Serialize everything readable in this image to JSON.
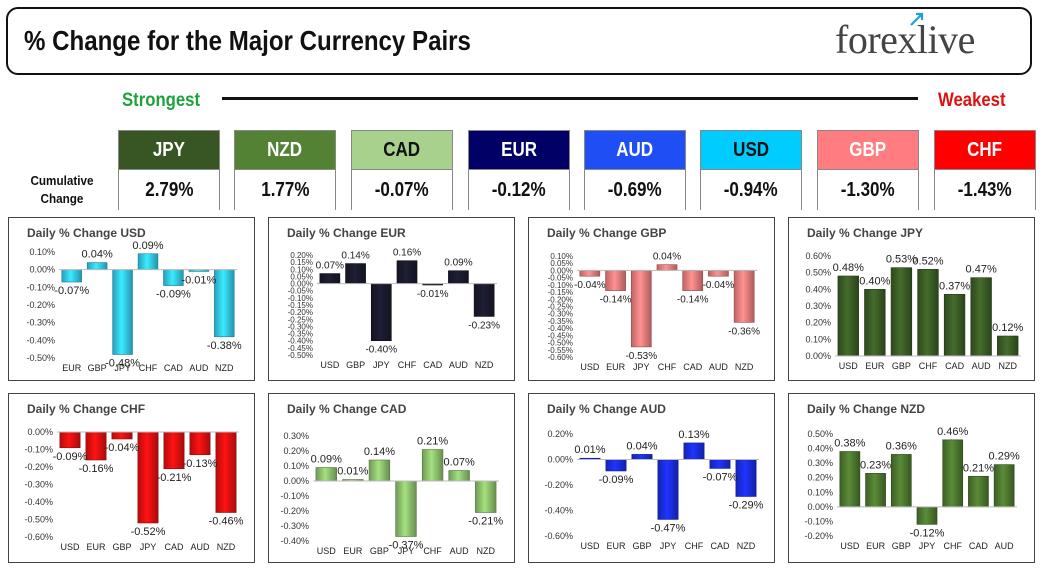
{
  "header": {
    "title": "% Change for the Major Currency Pairs",
    "logo_text_left": "fore",
    "logo_text_x": "x",
    "logo_text_right": "live",
    "strongest_label": "Strongest",
    "weakest_label": "Weakest",
    "cumulative_label_1": "Cumulative",
    "cumulative_label_2": "Change"
  },
  "ranking": [
    {
      "ccy": "JPY",
      "value": "2.79%",
      "bg": "#375623",
      "fg": "#ffffff"
    },
    {
      "ccy": "NZD",
      "value": "1.77%",
      "bg": "#548235",
      "fg": "#ffffff"
    },
    {
      "ccy": "CAD",
      "value": "-0.07%",
      "bg": "#a9d18e",
      "fg": "#111111"
    },
    {
      "ccy": "EUR",
      "value": "-0.12%",
      "bg": "#000066",
      "fg": "#ffffff"
    },
    {
      "ccy": "AUD",
      "value": "-0.69%",
      "bg": "#1f4ef5",
      "fg": "#ffffff"
    },
    {
      "ccy": "USD",
      "value": "-0.94%",
      "bg": "#00ccff",
      "fg": "#111111"
    },
    {
      "ccy": "GBP",
      "value": "-1.30%",
      "bg": "#ff7c80",
      "fg": "#ffffff"
    },
    {
      "ccy": "CHF",
      "value": "-1.43%",
      "bg": "#ff0000",
      "fg": "#ffffff"
    }
  ],
  "chart_data": [
    {
      "type": "bar",
      "title": "Daily % Change USD",
      "categories": [
        "EUR",
        "GBP",
        "JPY",
        "CHF",
        "CAD",
        "AUD",
        "NZD"
      ],
      "values": [
        -0.07,
        0.04,
        -0.48,
        0.09,
        -0.09,
        -0.01,
        -0.38
      ],
      "labels": [
        "-0.07%",
        "0.04%",
        "-0.48%",
        "0.09%",
        "-0.09%",
        "-0.01%",
        "-0.38%"
      ],
      "ticks": [
        0.1,
        0,
        -0.1,
        -0.2,
        -0.3,
        -0.4,
        -0.5
      ],
      "tick_labels": [
        "0.10%",
        "0.00%",
        "-0.10%",
        "-0.20%",
        "-0.30%",
        "-0.40%",
        "-0.50%"
      ],
      "color": "#33ccf2"
    },
    {
      "type": "bar",
      "title": "Daily % Change EUR",
      "categories": [
        "USD",
        "GBP",
        "JPY",
        "CHF",
        "CAD",
        "AUD",
        "NZD"
      ],
      "values": [
        0.07,
        0.14,
        -0.4,
        0.16,
        -0.01,
        0.09,
        -0.23
      ],
      "labels": [
        "0.07%",
        "0.14%",
        "-0.40%",
        "0.16%",
        "-0.01%",
        "0.09%",
        "-0.23%"
      ],
      "ticks": [
        0.2,
        0.15,
        0.1,
        0.05,
        0,
        -0.05,
        -0.1,
        -0.15,
        -0.2,
        -0.25,
        -0.3,
        -0.35,
        -0.4,
        -0.45,
        -0.5
      ],
      "tick_labels": [
        "0.20%",
        "0.15%",
        "0.10%",
        "0.05%",
        "0.00%",
        "-0.05%",
        "-0.10%",
        "-0.15%",
        "-0.20%",
        "-0.25%",
        "-0.30%",
        "-0.35%",
        "-0.40%",
        "-0.45%",
        "-0.50%"
      ],
      "color": "#1a1a2e"
    },
    {
      "type": "bar",
      "title": "Daily % Change GBP",
      "categories": [
        "USD",
        "EUR",
        "JPY",
        "CHF",
        "CAD",
        "AUD",
        "NZD"
      ],
      "values": [
        -0.04,
        -0.14,
        -0.53,
        0.04,
        -0.14,
        -0.04,
        -0.36
      ],
      "labels": [
        "-0.04%",
        "-0.14%",
        "-0.53%",
        "0.04%",
        "-0.14%",
        "-0.04%",
        "-0.36%"
      ],
      "ticks": [
        0.1,
        0.05,
        0,
        -0.05,
        -0.1,
        -0.15,
        -0.2,
        -0.25,
        -0.3,
        -0.35,
        -0.4,
        -0.45,
        -0.5,
        -0.55,
        -0.6
      ],
      "tick_labels": [
        "0.10%",
        "0.05%",
        "0.00%",
        "-0.05%",
        "-0.10%",
        "-0.15%",
        "-0.20%",
        "-0.25%",
        "-0.30%",
        "-0.35%",
        "-0.40%",
        "-0.45%",
        "-0.50%",
        "-0.55%",
        "-0.60%"
      ],
      "color": "#f27f7f"
    },
    {
      "type": "bar",
      "title": "Daily % Change JPY",
      "categories": [
        "USD",
        "EUR",
        "GBP",
        "CHF",
        "CAD",
        "AUD",
        "NZD"
      ],
      "values": [
        0.48,
        0.4,
        0.53,
        0.52,
        0.37,
        0.47,
        0.12
      ],
      "labels": [
        "0.48%",
        "0.40%",
        "0.53%",
        "0.52%",
        "0.37%",
        "0.47%",
        "0.12%"
      ],
      "ticks": [
        0.6,
        0.5,
        0.4,
        0.3,
        0.2,
        0.1,
        0
      ],
      "tick_labels": [
        "0.60%",
        "0.50%",
        "0.40%",
        "0.30%",
        "0.20%",
        "0.10%",
        "0.00%"
      ],
      "color": "#3b5e25"
    },
    {
      "type": "bar",
      "title": "Daily % Change CHF",
      "categories": [
        "USD",
        "EUR",
        "GBP",
        "JPY",
        "CAD",
        "AUD",
        "NZD"
      ],
      "values": [
        -0.09,
        -0.16,
        -0.04,
        -0.52,
        -0.21,
        -0.13,
        -0.46
      ],
      "labels": [
        "-0.09%",
        "-0.16%",
        "-0.04%",
        "-0.52%",
        "-0.21%",
        "-0.13%",
        "-0.46%"
      ],
      "ticks": [
        0,
        -0.1,
        -0.2,
        -0.3,
        -0.4,
        -0.5,
        -0.6
      ],
      "tick_labels": [
        "0.00%",
        "-0.10%",
        "-0.20%",
        "-0.30%",
        "-0.40%",
        "-0.50%",
        "-0.60%"
      ],
      "color": "#e81010"
    },
    {
      "type": "bar",
      "title": "Daily % Change CAD",
      "categories": [
        "USD",
        "EUR",
        "GBP",
        "JPY",
        "CHF",
        "AUD",
        "NZD"
      ],
      "values": [
        0.09,
        0.01,
        0.14,
        -0.37,
        0.21,
        0.07,
        -0.21
      ],
      "labels": [
        "0.09%",
        "0.01%",
        "0.14%",
        "-0.37%",
        "0.21%",
        "0.07%",
        "-0.21%"
      ],
      "ticks": [
        0.3,
        0.2,
        0.1,
        0,
        -0.1,
        -0.2,
        -0.3,
        -0.4
      ],
      "tick_labels": [
        "0.30%",
        "0.20%",
        "0.10%",
        "0.00%",
        "-0.10%",
        "-0.20%",
        "-0.30%",
        "-0.40%"
      ],
      "color": "#8fc46e"
    },
    {
      "type": "bar",
      "title": "Daily % Change AUD",
      "categories": [
        "USD",
        "EUR",
        "GBP",
        "JPY",
        "CHF",
        "CAD",
        "NZD"
      ],
      "values": [
        0.01,
        -0.09,
        0.04,
        -0.47,
        0.13,
        -0.07,
        -0.29
      ],
      "labels": [
        "0.01%",
        "-0.09%",
        "0.04%",
        "-0.47%",
        "0.13%",
        "-0.07%",
        "-0.29%"
      ],
      "ticks": [
        0.2,
        0,
        -0.2,
        -0.4,
        -0.6
      ],
      "tick_labels": [
        "0.20%",
        "0.00%",
        "-0.20%",
        "-0.40%",
        "-0.60%"
      ],
      "color": "#1a2ee8"
    },
    {
      "type": "bar",
      "title": "Daily % Change NZD",
      "categories": [
        "USD",
        "EUR",
        "GBP",
        "JPY",
        "CHF",
        "CAD",
        "AUD"
      ],
      "values": [
        0.38,
        0.23,
        0.36,
        -0.12,
        0.46,
        0.21,
        0.29
      ],
      "labels": [
        "0.38%",
        "0.23%",
        "0.36%",
        "-0.12%",
        "0.46%",
        "0.21%",
        "0.29%"
      ],
      "ticks": [
        0.5,
        0.4,
        0.3,
        0.2,
        0.1,
        0,
        -0.1,
        -0.2
      ],
      "tick_labels": [
        "0.50%",
        "0.40%",
        "0.30%",
        "0.20%",
        "0.10%",
        "0.00%",
        "-0.10%",
        "-0.20%"
      ],
      "color": "#4e7a30"
    }
  ]
}
